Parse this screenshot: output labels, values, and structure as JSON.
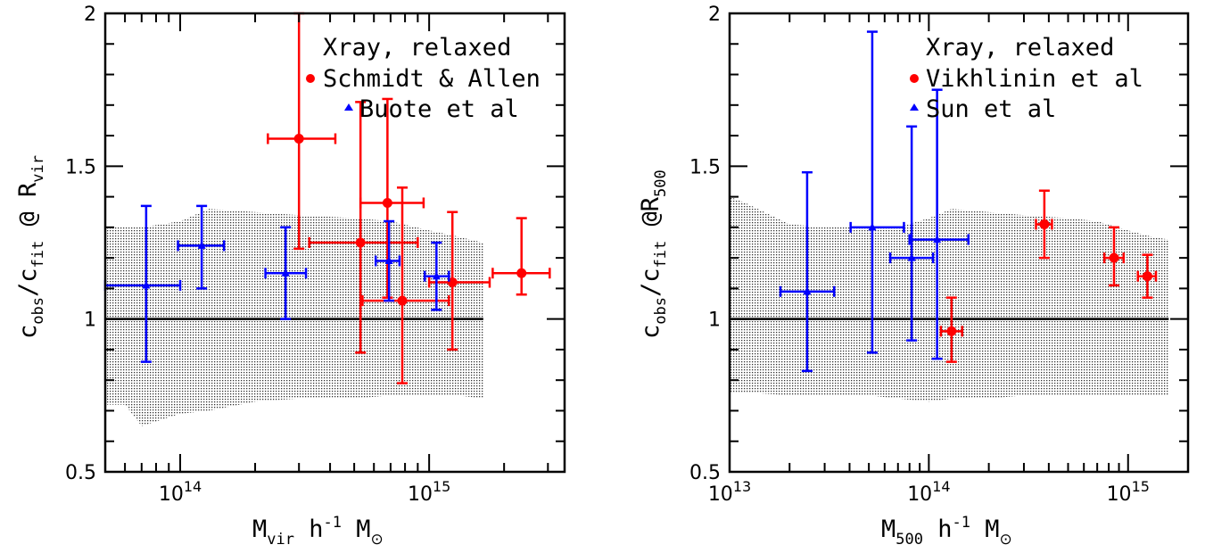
{
  "figure": {
    "panels": [
      {
        "id": "left",
        "ylabel": {
          "main": "c",
          "sub1": "obs",
          "slash": "/c",
          "sub2": "fit",
          "rest": " @ R",
          "sub3": "vir"
        },
        "xlabel": {
          "main": "M",
          "sub1": "vir",
          "rest": " h",
          "sup": "-1",
          "rest2": " M",
          "sun": "⊙"
        },
        "legend": [
          {
            "text": "Xray, relaxed",
            "marker": "none",
            "color": "#000000"
          },
          {
            "text": "Schmidt & Allen",
            "marker": "circle",
            "color": "#ff0000"
          },
          {
            "text": "Buote et al",
            "marker": "triangle",
            "color": "#0000ff"
          }
        ],
        "y_ticks": [
          "0.5",
          "1",
          "1.5",
          "2"
        ],
        "x_tick_labels": [
          {
            "base": "10",
            "exp": "14",
            "value": 100000000000000.0
          },
          {
            "base": "10",
            "exp": "15",
            "value": 1000000000000000.0
          }
        ]
      },
      {
        "id": "right",
        "ylabel": {
          "main": "c",
          "sub1": "obs",
          "slash": "/c",
          "sub2": "fit",
          "rest": " @R",
          "sub3": "500"
        },
        "xlabel": {
          "main": "M",
          "sub1": "500",
          "rest": " h",
          "sup": "-1",
          "rest2": " M",
          "sun": "⊙"
        },
        "legend": [
          {
            "text": "Xray, relaxed",
            "marker": "none",
            "color": "#000000"
          },
          {
            "text": "Vikhlinin et al",
            "marker": "circle",
            "color": "#ff0000"
          },
          {
            "text": "Sun et al",
            "marker": "triangle",
            "color": "#0000ff"
          }
        ],
        "y_ticks": [
          "0.5",
          "1",
          "1.5",
          "2"
        ],
        "x_tick_labels": [
          {
            "base": "10",
            "exp": "13",
            "value": 10000000000000.0
          },
          {
            "base": "10",
            "exp": "14",
            "value": 100000000000000.0
          },
          {
            "base": "10",
            "exp": "15",
            "value": 1000000000000000.0
          }
        ]
      }
    ]
  },
  "chart_data": [
    {
      "type": "scatter",
      "x_scale": "log",
      "xlim": [
        50000000000000.0,
        3500000000000000.0
      ],
      "ylim": [
        0.5,
        2.0
      ],
      "reference_line_y": 1.0,
      "grid": false,
      "legend_position": "top-right",
      "band": {
        "x": [
          50000000000000.0,
          60000000000000.0,
          70000000000000.0,
          100000000000000.0,
          130000000000000.0,
          200000000000000.0,
          300000000000000.0,
          500000000000000.0,
          700000000000000.0,
          1000000000000000.0,
          1300000000000000.0,
          1650000000000000.0
        ],
        "upper": [
          1.3,
          1.3,
          1.3,
          1.32,
          1.36,
          1.35,
          1.34,
          1.33,
          1.32,
          1.29,
          1.27,
          1.25
        ],
        "lower": [
          0.72,
          0.72,
          0.65,
          0.69,
          0.7,
          0.73,
          0.74,
          0.74,
          0.75,
          0.75,
          0.75,
          0.74
        ]
      },
      "series": [
        {
          "name": "Schmidt & Allen",
          "marker": "circle",
          "color": "#ff0000",
          "points": [
            {
              "x": 300000000000000.0,
              "y": 1.59,
              "xlo": 225000000000000.0,
              "xhi": 420000000000000.0,
              "ylo": 1.23,
              "yhi": 2.0
            },
            {
              "x": 530000000000000.0,
              "y": 1.25,
              "xlo": 330000000000000.0,
              "xhi": 900000000000000.0,
              "ylo": 0.89,
              "yhi": 1.71
            },
            {
              "x": 680000000000000.0,
              "y": 1.38,
              "xlo": 530000000000000.0,
              "xhi": 950000000000000.0,
              "ylo": 1.07,
              "yhi": 1.72
            },
            {
              "x": 780000000000000.0,
              "y": 1.06,
              "xlo": 540000000000000.0,
              "xhi": 1200000000000000.0,
              "ylo": 0.79,
              "yhi": 1.43
            },
            {
              "x": 1240000000000000.0,
              "y": 1.12,
              "xlo": 1000000000000000.0,
              "xhi": 1750000000000000.0,
              "ylo": 0.9,
              "yhi": 1.35
            },
            {
              "x": 2350000000000000.0,
              "y": 1.15,
              "xlo": 1800000000000000.0,
              "xhi": 3050000000000000.0,
              "ylo": 1.08,
              "yhi": 1.33
            }
          ]
        },
        {
          "name": "Buote et al",
          "marker": "triangle",
          "color": "#0000ff",
          "points": [
            {
              "x": 73000000000000.0,
              "y": 1.11,
              "xlo": 50000000000000.0,
              "xhi": 100000000000000.0,
              "ylo": 0.86,
              "yhi": 1.37
            },
            {
              "x": 122000000000000.0,
              "y": 1.24,
              "xlo": 98000000000000.0,
              "xhi": 150000000000000.0,
              "ylo": 1.1,
              "yhi": 1.37
            },
            {
              "x": 265000000000000.0,
              "y": 1.15,
              "xlo": 220000000000000.0,
              "xhi": 320000000000000.0,
              "ylo": 1.0,
              "yhi": 1.3
            },
            {
              "x": 690000000000000.0,
              "y": 1.19,
              "xlo": 610000000000000.0,
              "xhi": 760000000000000.0,
              "ylo": 1.06,
              "yhi": 1.32
            },
            {
              "x": 1070000000000000.0,
              "y": 1.14,
              "xlo": 960000000000000.0,
              "xhi": 1200000000000000.0,
              "ylo": 1.03,
              "yhi": 1.25
            }
          ]
        }
      ]
    },
    {
      "type": "scatter",
      "x_scale": "log",
      "xlim": [
        10000000000000.0,
        2000000000000000.0
      ],
      "ylim": [
        0.5,
        2.0
      ],
      "reference_line_y": 1.0,
      "grid": false,
      "legend_position": "top-right",
      "band": {
        "x": [
          10000000000000.0,
          12000000000000.0,
          20000000000000.0,
          30000000000000.0,
          40000000000000.0,
          50000000000000.0,
          70000000000000.0,
          100000000000000.0,
          130000000000000.0,
          200000000000000.0,
          300000000000000.0,
          500000000000000.0,
          700000000000000.0,
          1000000000000000.0,
          1300000000000000.0,
          1600000000000000.0
        ],
        "upper": [
          1.4,
          1.38,
          1.31,
          1.3,
          1.3,
          1.3,
          1.3,
          1.33,
          1.36,
          1.35,
          1.34,
          1.33,
          1.32,
          1.29,
          1.27,
          1.26
        ],
        "lower": [
          0.76,
          0.76,
          0.75,
          0.75,
          0.75,
          0.75,
          0.74,
          0.73,
          0.74,
          0.74,
          0.75,
          0.75,
          0.75,
          0.75,
          0.75,
          0.75
        ]
      },
      "series": [
        {
          "name": "Vikhlinin et al",
          "marker": "circle",
          "color": "#ff0000",
          "points": [
            {
              "x": 130000000000000.0,
              "y": 0.96,
              "xlo": 115000000000000.0,
              "xhi": 147000000000000.0,
              "ylo": 0.86,
              "yhi": 1.07
            },
            {
              "x": 380000000000000.0,
              "y": 1.31,
              "xlo": 345000000000000.0,
              "xhi": 415000000000000.0,
              "ylo": 1.2,
              "yhi": 1.42
            },
            {
              "x": 850000000000000.0,
              "y": 1.2,
              "xlo": 760000000000000.0,
              "xhi": 950000000000000.0,
              "ylo": 1.11,
              "yhi": 1.3
            },
            {
              "x": 1250000000000000.0,
              "y": 1.14,
              "xlo": 1120000000000000.0,
              "xhi": 1380000000000000.0,
              "ylo": 1.07,
              "yhi": 1.21
            }
          ]
        },
        {
          "name": "Sun et al",
          "marker": "triangle",
          "color": "#0000ff",
          "points": [
            {
              "x": 24500000000000.0,
              "y": 1.09,
              "xlo": 18000000000000.0,
              "xhi": 33500000000000.0,
              "ylo": 0.83,
              "yhi": 1.48
            },
            {
              "x": 52000000000000.0,
              "y": 1.3,
              "xlo": 40500000000000.0,
              "xhi": 75000000000000.0,
              "ylo": 0.89,
              "yhi": 1.94
            },
            {
              "x": 82000000000000.0,
              "y": 1.2,
              "xlo": 64000000000000.0,
              "xhi": 105000000000000.0,
              "ylo": 0.93,
              "yhi": 1.63
            },
            {
              "x": 110000000000000.0,
              "y": 1.26,
              "xlo": 80000000000000.0,
              "xhi": 158000000000000.0,
              "ylo": 0.87,
              "yhi": 1.75
            }
          ]
        }
      ]
    }
  ]
}
